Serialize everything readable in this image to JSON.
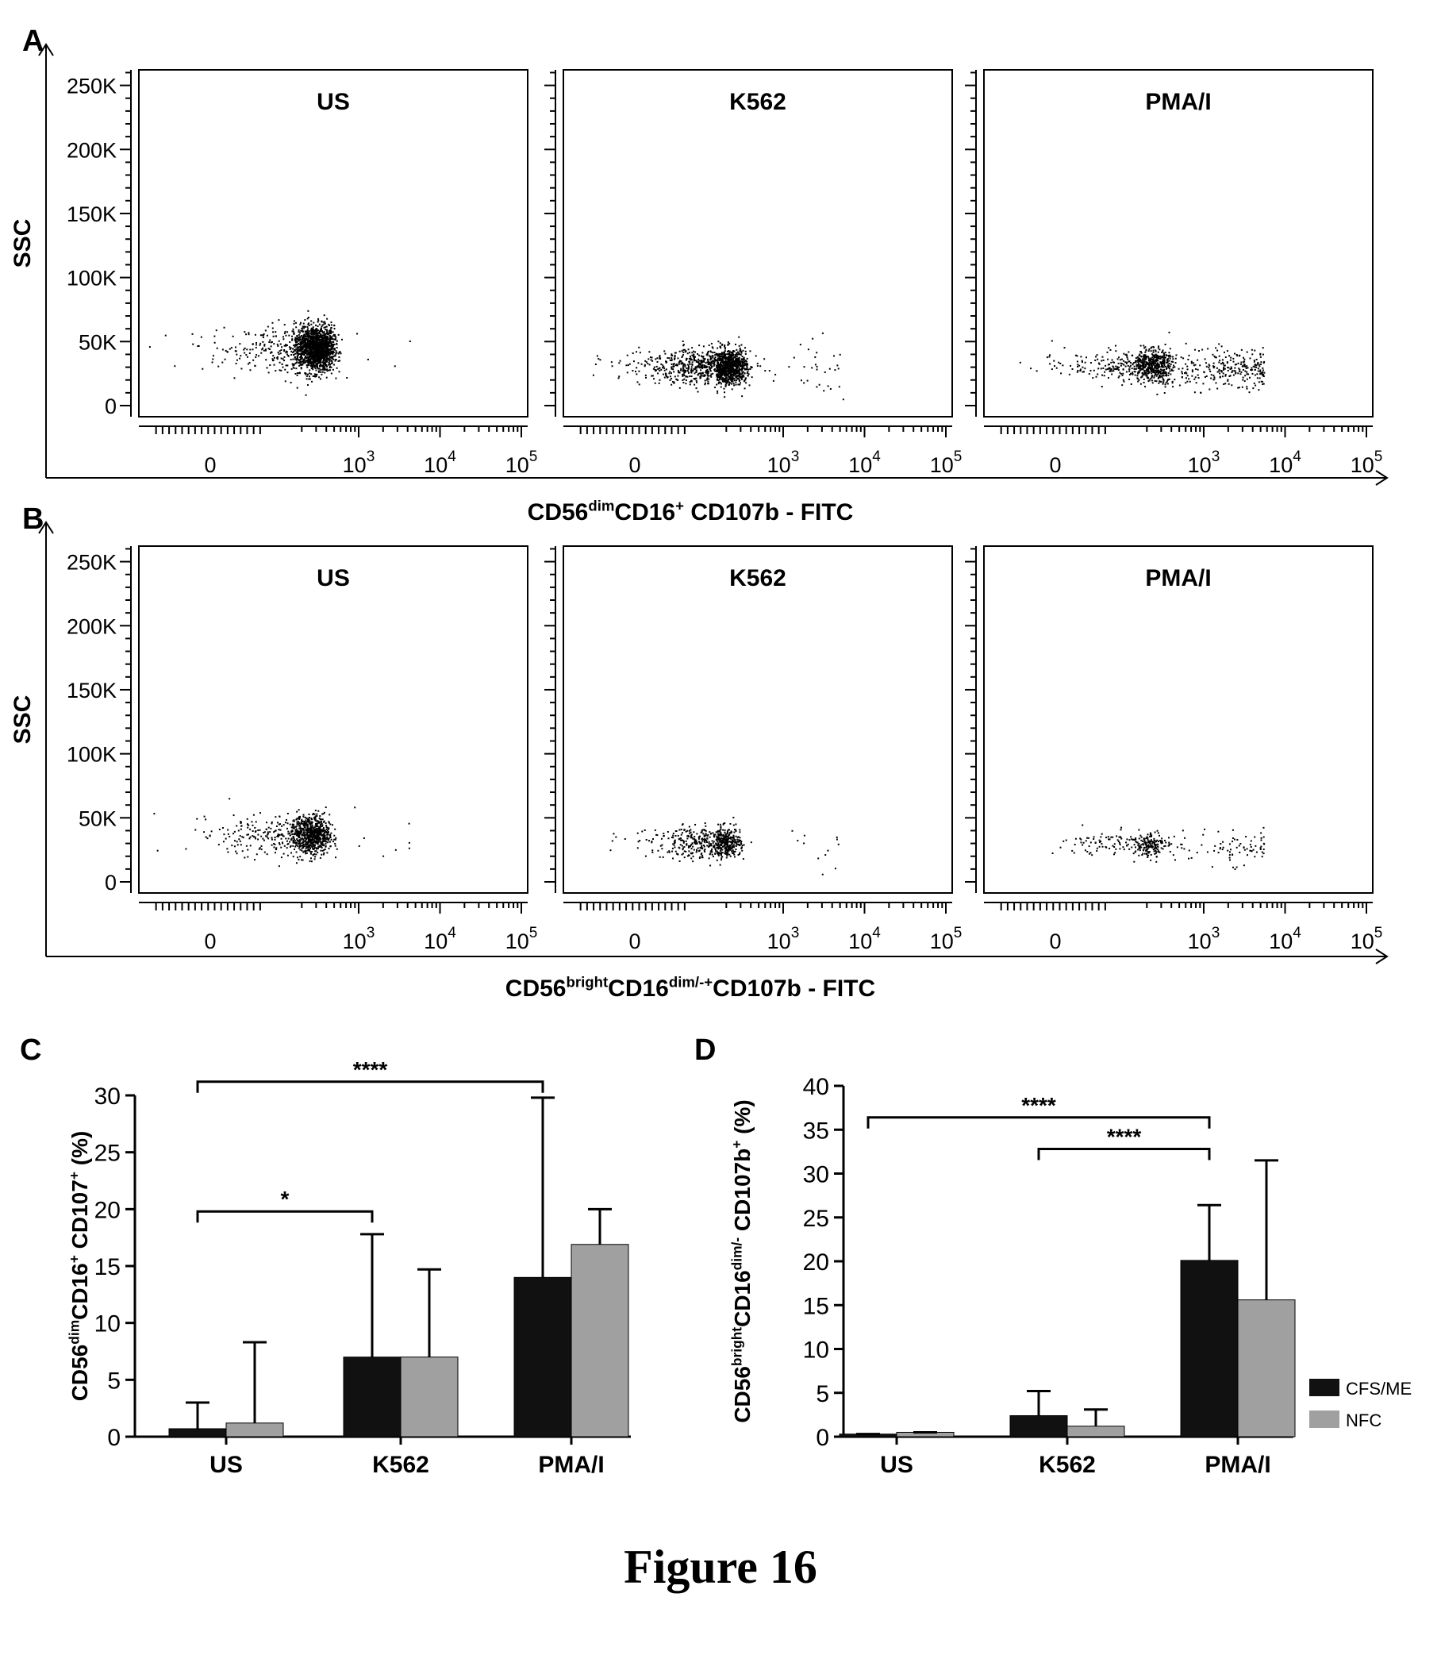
{
  "figure_caption": "Figure 16",
  "chart_data": [
    {
      "id": "A",
      "type": "scatter",
      "panel_label": "A",
      "ylabel": "SSC",
      "xlabel_parts": [
        {
          "t": "CD56"
        },
        {
          "t": "dim",
          "sup": true
        },
        {
          "t": "CD16"
        },
        {
          "t": "+",
          "sup": true
        },
        {
          "t": " CD107b  -  FITC"
        }
      ],
      "y_ticks": [
        "0",
        "50K",
        "100K",
        "150K",
        "200K",
        "250K"
      ],
      "x_ticks": [
        {
          "base": "0"
        },
        {
          "base": "10",
          "exp": "3"
        },
        {
          "base": "10",
          "exp": "4"
        },
        {
          "base": "10",
          "exp": "5"
        }
      ],
      "ylim": [
        0,
        262144
      ],
      "panels": [
        {
          "title": "US",
          "cluster": {
            "x_center": 280,
            "y_center": 45000,
            "count": 1700,
            "spread_x": 190,
            "spread_y": 9000,
            "tail_points": 6
          }
        },
        {
          "title": "K562",
          "cluster": {
            "x_center": 180,
            "y_center": 31000,
            "count": 1300,
            "spread_x": 150,
            "spread_y": 7000,
            "tail_points": 40
          }
        },
        {
          "title": "PMA/I",
          "cluster": {
            "x_center": 200,
            "y_center": 32000,
            "count": 650,
            "spread_x": 160,
            "spread_y": 6000,
            "tail_points": 280
          }
        }
      ]
    },
    {
      "id": "B",
      "type": "scatter",
      "panel_label": "B",
      "ylabel": "SSC",
      "xlabel_parts": [
        {
          "t": "CD56"
        },
        {
          "t": "bright",
          "sup": true
        },
        {
          "t": "CD16"
        },
        {
          "t": "dim/-+",
          "sup": true
        },
        {
          "t": "CD107b  -  FITC"
        }
      ],
      "y_ticks": [
        "0",
        "50K",
        "100K",
        "150K",
        "200K",
        "250K"
      ],
      "x_ticks": [
        {
          "base": "0"
        },
        {
          "base": "10",
          "exp": "3"
        },
        {
          "base": "10",
          "exp": "4"
        },
        {
          "base": "10",
          "exp": "5"
        }
      ],
      "ylim": [
        0,
        262144
      ],
      "panels": [
        {
          "title": "US",
          "cluster": {
            "x_center": 230,
            "y_center": 37000,
            "count": 900,
            "spread_x": 180,
            "spread_y": 8000,
            "tail_points": 10
          }
        },
        {
          "title": "K562",
          "cluster": {
            "x_center": 160,
            "y_center": 31000,
            "count": 600,
            "spread_x": 120,
            "spread_y": 6000,
            "tail_points": 12
          }
        },
        {
          "title": "PMA/I",
          "cluster": {
            "x_center": 170,
            "y_center": 30000,
            "count": 240,
            "spread_x": 140,
            "spread_y": 5000,
            "tail_points": 90
          }
        }
      ]
    },
    {
      "id": "C",
      "type": "bar",
      "panel_label": "C",
      "ylabel_parts": [
        {
          "t": "CD56"
        },
        {
          "t": "dim",
          "sup": true
        },
        {
          "t": "CD16"
        },
        {
          "t": "+",
          "sup": true
        },
        {
          "t": " CD107"
        },
        {
          "t": "+",
          "sup": true
        },
        {
          "t": " (%)"
        }
      ],
      "categories": [
        "US",
        "K562",
        "PMA/I"
      ],
      "ylim": [
        0,
        30
      ],
      "y_ticks": [
        0,
        5,
        10,
        15,
        20,
        25,
        30
      ],
      "series": [
        {
          "name": "CFS/ME",
          "color": "#111111",
          "values": [
            0.7,
            7.0,
            14.0
          ],
          "errors": [
            3.0,
            17.8,
            29.8
          ]
        },
        {
          "name": "NFC",
          "color": "#a0a0a0",
          "values": [
            1.2,
            7.0,
            16.9
          ],
          "errors": [
            8.3,
            14.7,
            20.0
          ]
        }
      ],
      "brackets": [
        {
          "from": 0,
          "to": 1,
          "y": 19.8,
          "label": "*"
        },
        {
          "from": 0,
          "to": 2,
          "y": 31.2,
          "label": "****"
        }
      ]
    },
    {
      "id": "D",
      "type": "bar",
      "panel_label": "D",
      "ylabel_parts": [
        {
          "t": "CD56"
        },
        {
          "t": "bright",
          "sup": true
        },
        {
          "t": "CD16"
        },
        {
          "t": "dim/-",
          "sup": true
        },
        {
          "t": " CD107b"
        },
        {
          "t": "+",
          "sup": true
        },
        {
          "t": " (%)"
        }
      ],
      "categories": [
        "US",
        "K562",
        "PMA/I"
      ],
      "ylim": [
        0,
        40
      ],
      "y_ticks": [
        0,
        5,
        10,
        15,
        20,
        25,
        30,
        35,
        40
      ],
      "series": [
        {
          "name": "CFS/ME",
          "color": "#111111",
          "values": [
            0.3,
            2.4,
            20.1
          ],
          "errors": [
            0.3,
            5.2,
            26.4
          ]
        },
        {
          "name": "NFC",
          "color": "#a0a0a0",
          "values": [
            0.5,
            1.2,
            15.6
          ],
          "errors": [
            0.5,
            3.1,
            31.5
          ]
        }
      ],
      "brackets": [
        {
          "from": 0,
          "to": 2,
          "y": 36.4,
          "label": "****"
        },
        {
          "from": 1,
          "to": 2,
          "y": 32.8,
          "label": "****"
        }
      ],
      "legend": {
        "position": "right",
        "entries": [
          "CFS/ME",
          "NFC"
        ]
      }
    }
  ]
}
